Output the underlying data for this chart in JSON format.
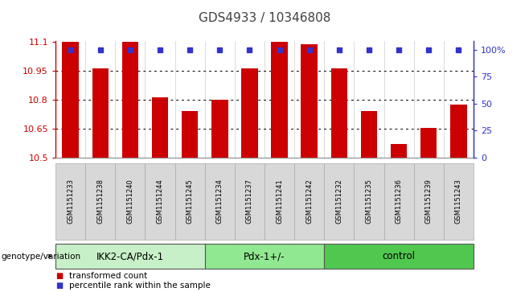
{
  "title": "GDS4933 / 10346808",
  "samples": [
    "GSM1151233",
    "GSM1151238",
    "GSM1151240",
    "GSM1151244",
    "GSM1151245",
    "GSM1151234",
    "GSM1151237",
    "GSM1151241",
    "GSM1151242",
    "GSM1151232",
    "GSM1151235",
    "GSM1151236",
    "GSM1151239",
    "GSM1151243"
  ],
  "red_values": [
    11.1,
    10.96,
    11.1,
    10.81,
    10.74,
    10.8,
    10.96,
    11.1,
    11.085,
    10.96,
    10.74,
    10.57,
    10.655,
    10.775
  ],
  "blue_values": [
    100,
    100,
    100,
    100,
    100,
    100,
    100,
    100,
    100,
    100,
    100,
    100,
    100,
    100
  ],
  "ymin": 10.5,
  "ymax": 11.1,
  "yticks": [
    10.5,
    10.65,
    10.8,
    10.95,
    11.1
  ],
  "ytick_labels": [
    "10.5",
    "10.65",
    "10.8",
    "10.95",
    "11.1"
  ],
  "right_yticks": [
    0,
    25,
    50,
    75,
    100
  ],
  "right_ytick_labels": [
    "0",
    "25",
    "50",
    "75",
    "100%"
  ],
  "groups": [
    {
      "label": "IKK2-CA/Pdx-1",
      "start": 0,
      "end": 5,
      "color": "#c8f0c8"
    },
    {
      "label": "Pdx-1+/-",
      "start": 5,
      "end": 9,
      "color": "#90e890"
    },
    {
      "label": "control",
      "start": 9,
      "end": 14,
      "color": "#50c850"
    }
  ],
  "bar_color": "#cc0000",
  "dot_color": "#3333cc",
  "legend_label_red": "transformed count",
  "legend_label_blue": "percentile rank within the sample",
  "genotype_label": "genotype/variation",
  "title_color": "#404040",
  "left_axis_color": "#cc0000",
  "right_axis_color": "#3333cc",
  "bar_width": 0.55,
  "dot_size": 4,
  "sample_box_color": "#d8d8d8",
  "sample_box_edge": "#aaaaaa"
}
